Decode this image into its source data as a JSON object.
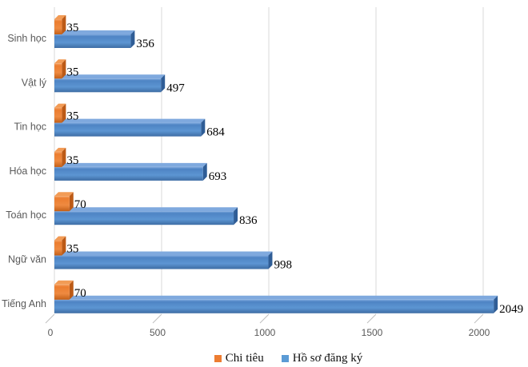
{
  "chart_data": {
    "type": "bar",
    "orientation": "horizontal",
    "style": "3d",
    "title": "",
    "categories": [
      "Sinh học",
      "Vật lý",
      "Tin học",
      "Hóa học",
      "Toán học",
      "Ngữ văn",
      "Tiếng Anh"
    ],
    "series": [
      {
        "name": "Chi tiêu",
        "values": [
          35,
          35,
          35,
          35,
          70,
          35,
          70
        ],
        "color": "#ED7D31",
        "color_top": "#F29B55",
        "color_side": "#BC5A16",
        "gradient": [
          "#F5A569",
          "#EC7D2F",
          "#EE8A41",
          "#C35F17"
        ]
      },
      {
        "name": "Hồ sơ đăng ký",
        "values": [
          356,
          497,
          684,
          693,
          836,
          998,
          2049
        ],
        "color": "#5B9BD5",
        "color_top": "#7FA9DE",
        "color_side": "#2F5D96",
        "gradient": [
          "#7FA9DE",
          "#4E84C4",
          "#5C95D2",
          "#3E6DA4"
        ]
      }
    ],
    "x_ticks": [
      "0",
      "500",
      "1000",
      "1500",
      "2000"
    ],
    "x_tick_values": [
      0,
      500,
      1000,
      1500,
      2000
    ],
    "xlim": [
      0,
      2160
    ],
    "grid": true,
    "legend_position": "bottom"
  },
  "colors": {
    "background": "#FFFFFF",
    "gridline": "#D9D9D9",
    "axis_tick": "#BFBFBF",
    "axis_text": "#595959",
    "category_text": "#595959",
    "value_label_text": "#000000"
  }
}
